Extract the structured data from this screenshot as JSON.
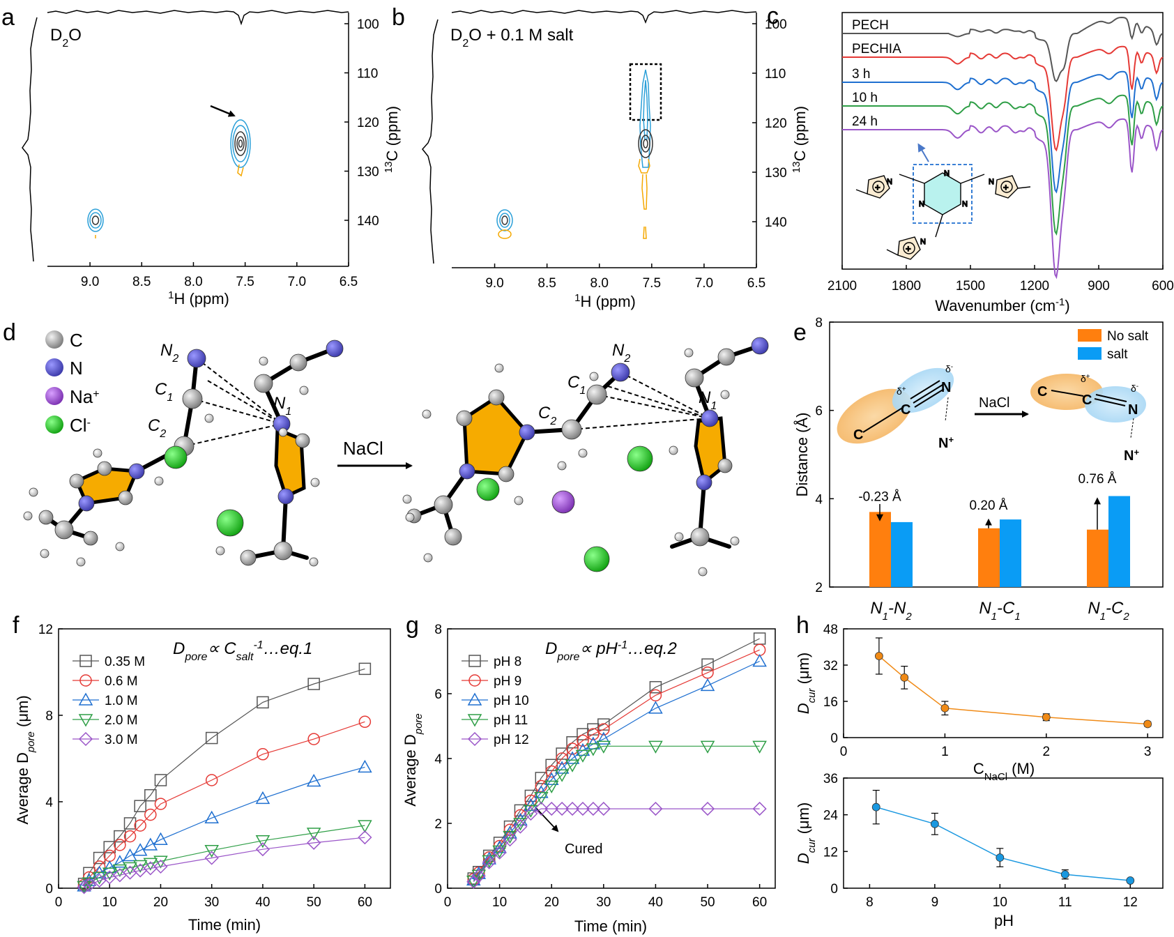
{
  "panel_letters": {
    "a": "a",
    "b": "b",
    "c": "c",
    "d": "d",
    "e": "e",
    "f": "f",
    "g": "g",
    "h": "h"
  },
  "colors": {
    "contour_blue": "#2a9fd8",
    "contour_dark": "#333333",
    "contour_orange": "#f5a800",
    "ir_pech": "#555555",
    "ir_pechia": "#e53935",
    "ir_3h": "#1e6fd0",
    "ir_10h": "#2e9e46",
    "ir_24h": "#9a55c8",
    "bar_nosalt": "#ff7f0e",
    "bar_salt": "#0a9cf5",
    "f_035": "#555555",
    "f_06": "#e53935",
    "f_10": "#1e6fd0",
    "f_20": "#2e9e46",
    "f_30": "#9a55c8",
    "h_top": "#f08a16",
    "h_bot": "#1a98e0",
    "atom_C": "#a0a0a0",
    "atom_N": "#5553c8",
    "atom_Na": "#9a4fd0",
    "atom_Cl": "#22c022",
    "ring": "#f6ab00"
  },
  "chart_data": [
    {
      "panel": "a",
      "type": "heatmap",
      "label_main": "D",
      "label_sub": "2",
      "label_rest": "O",
      "xlabel_sup": "1",
      "xlabel": "H (ppm)",
      "ylabel_sup": "13",
      "ylabel": "C (ppm)",
      "xlim": [
        9.3,
        6.5
      ],
      "ylim": [
        100,
        145
      ],
      "xticks": [
        "9.0",
        "8.5",
        "8.0",
        "7.5",
        "7.0",
        "6.5"
      ],
      "yticks": [
        "100",
        "110",
        "120",
        "130",
        "140"
      ],
      "peaks": [
        {
          "h": 7.5,
          "c": 122.5
        },
        {
          "h": 8.8,
          "c": 136.5
        }
      ]
    },
    {
      "panel": "b",
      "type": "heatmap",
      "label_main": "D",
      "label_sub": "2",
      "label_rest": "O + 0.1 M salt",
      "xlabel_sup": "1",
      "xlabel": "H (ppm)",
      "ylabel_sup": "13",
      "ylabel": "C (ppm)",
      "xlim": [
        9.3,
        6.5
      ],
      "ylim": [
        100,
        145
      ],
      "xticks": [
        "9.0",
        "8.5",
        "8.0",
        "7.5",
        "7.0",
        "6.5"
      ],
      "yticks": [
        "100",
        "110",
        "120",
        "130",
        "140"
      ],
      "peaks": [
        {
          "h": 7.5,
          "c": 122.5
        },
        {
          "h": 8.75,
          "c": 136.5
        }
      ]
    },
    {
      "panel": "c",
      "type": "line",
      "xlabel": "Wavenumber (cm",
      "xlabel_sup": "-1",
      "xlabel_end": ")",
      "xlim": [
        2100,
        600
      ],
      "xticks": [
        "2100",
        "1800",
        "1500",
        "1200",
        "900",
        "600"
      ],
      "series": [
        {
          "name": "PECH"
        },
        {
          "name": "PECHIA"
        },
        {
          "name": "3 h"
        },
        {
          "name": "10 h"
        },
        {
          "name": "24 h"
        }
      ]
    },
    {
      "panel": "d",
      "type": "other",
      "legend": [
        {
          "name": "C"
        },
        {
          "name": "N"
        },
        {
          "name": "Na",
          "sup": "+"
        },
        {
          "name": "Cl",
          "sup": "-"
        }
      ],
      "arrow_label": "NaCl"
    },
    {
      "panel": "e",
      "type": "bar",
      "ylabel": "Distance (Å)",
      "ylim": [
        2,
        8
      ],
      "yticks": [
        "2",
        "4",
        "6",
        "8"
      ],
      "categories": [
        "N1-N2",
        "N1-C1",
        "N1-C2"
      ],
      "series": [
        {
          "name": "No salt",
          "values": [
            3.7,
            3.33,
            3.3
          ]
        },
        {
          "name": "salt",
          "values": [
            3.47,
            3.53,
            4.06
          ]
        }
      ],
      "annotations": [
        "-0.23 Å",
        "0.20 Å",
        "0.76 Å"
      ],
      "scheme_label": "NaCl"
    },
    {
      "panel": "f",
      "type": "scatter",
      "eq": "D",
      "eq_sub": "pore",
      "eq_mid": "∝ C",
      "eq_sub2": "salt",
      "eq_sup": "-1",
      "eq_end": "…eq.1",
      "xlabel": "Time (min)",
      "ylabel": "Average D",
      "ylabel_sub": "pore",
      "ylabel_end": " (μm)",
      "xlim": [
        0,
        65
      ],
      "ylim": [
        0,
        12
      ],
      "xticks": [
        "0",
        "10",
        "20",
        "30",
        "40",
        "50",
        "60"
      ],
      "yticks": [
        "0",
        "4",
        "8",
        "12"
      ],
      "x": [
        5,
        6,
        8,
        10,
        12,
        14,
        16,
        18,
        20,
        30,
        40,
        50,
        60
      ],
      "series": [
        {
          "name": "0.35 M",
          "values": [
            0.2,
            0.7,
            1.4,
            1.9,
            2.4,
            3.0,
            3.8,
            4.3,
            5.0,
            6.95,
            8.6,
            9.45,
            10.15
          ]
        },
        {
          "name": "0.6 M",
          "values": [
            0.15,
            0.5,
            1.0,
            1.5,
            2.0,
            2.4,
            2.9,
            3.4,
            3.9,
            5.0,
            6.2,
            6.9,
            7.7
          ]
        },
        {
          "name": "1.0 M",
          "values": [
            0.1,
            0.35,
            0.7,
            0.95,
            1.2,
            1.5,
            1.75,
            2.0,
            2.25,
            3.25,
            4.15,
            4.95,
            5.6
          ]
        },
        {
          "name": "2.0 M",
          "values": [
            0.08,
            0.25,
            0.5,
            0.7,
            0.85,
            0.95,
            1.05,
            1.15,
            1.25,
            1.75,
            2.2,
            2.55,
            2.9
          ]
        },
        {
          "name": "3.0 M",
          "values": [
            0.05,
            0.15,
            0.35,
            0.5,
            0.6,
            0.72,
            0.82,
            0.92,
            1.0,
            1.4,
            1.8,
            2.1,
            2.35
          ]
        }
      ]
    },
    {
      "panel": "g",
      "type": "scatter",
      "eq": "D",
      "eq_sub": "pore",
      "eq_mid": "∝ pH",
      "eq_sup": "-1",
      "eq_end": "…eq.2",
      "xlabel": "Time (min)",
      "ylabel": "Average D",
      "ylabel_sub": "pore",
      "xlim": [
        0,
        63
      ],
      "ylim": [
        0,
        8
      ],
      "xticks": [
        "0",
        "10",
        "20",
        "30",
        "40",
        "50",
        "60"
      ],
      "yticks": [
        "0",
        "2",
        "4",
        "6",
        "8"
      ],
      "annotation": "Cured",
      "x": [
        5,
        6,
        8,
        10,
        12,
        14,
        16,
        18,
        20,
        22,
        24,
        26,
        28,
        30,
        40,
        50,
        60
      ],
      "series": [
        {
          "name": "pH 8",
          "values": [
            0.3,
            0.5,
            1.0,
            1.4,
            1.9,
            2.4,
            2.85,
            3.4,
            3.8,
            4.15,
            4.5,
            4.75,
            4.9,
            5.05,
            6.2,
            6.9,
            7.7
          ]
        },
        {
          "name": "pH 9",
          "values": [
            0.28,
            0.48,
            0.95,
            1.3,
            1.8,
            2.25,
            2.7,
            3.15,
            3.6,
            4.0,
            4.3,
            4.55,
            4.75,
            4.9,
            5.95,
            6.65,
            7.35
          ]
        },
        {
          "name": "pH 10",
          "values": [
            0.25,
            0.45,
            0.9,
            1.25,
            1.7,
            2.1,
            2.55,
            2.95,
            3.35,
            3.7,
            4.0,
            4.25,
            4.45,
            4.6,
            5.55,
            6.25,
            7.0
          ]
        },
        {
          "name": "pH 11",
          "values": [
            0.22,
            0.4,
            0.85,
            1.15,
            1.6,
            2.0,
            2.4,
            2.8,
            3.15,
            3.5,
            3.8,
            4.1,
            4.3,
            4.38,
            4.38,
            4.38,
            4.38
          ]
        },
        {
          "name": "pH 12",
          "values": [
            0.2,
            0.38,
            0.8,
            1.1,
            1.5,
            1.9,
            2.3,
            2.45,
            2.45,
            2.45,
            2.45,
            2.45,
            2.45,
            2.45,
            2.45,
            2.45,
            2.45
          ]
        }
      ]
    },
    {
      "panel": "h-top",
      "type": "line",
      "xlabel": "C",
      "xlabel_sub": "NaCl",
      "xlabel_end": " (M)",
      "ylabel": "D",
      "ylabel_sub": "cur",
      "ylabel_end": " (μm)",
      "xlim": [
        0,
        3.15
      ],
      "ylim": [
        0,
        48
      ],
      "xticks": [
        "0",
        "1",
        "2",
        "3"
      ],
      "yticks": [
        "0",
        "16",
        "32",
        "48"
      ],
      "x": [
        0.35,
        0.6,
        1.0,
        2.0,
        3.0
      ],
      "values": [
        36,
        26.5,
        13,
        9,
        6
      ],
      "errors": [
        8,
        5,
        3,
        1.5,
        1
      ]
    },
    {
      "panel": "h-bottom",
      "type": "line",
      "xlabel": "pH",
      "ylabel": "D",
      "ylabel_sub": "cur",
      "ylabel_end": " (μm)",
      "xlim": [
        7.6,
        12.5
      ],
      "ylim": [
        0,
        36
      ],
      "xticks": [
        "8",
        "9",
        "10",
        "11",
        "12"
      ],
      "yticks": [
        "0",
        "12",
        "24",
        "36"
      ],
      "x": [
        8.1,
        9,
        10,
        11,
        12
      ],
      "values": [
        26.5,
        21,
        10,
        4.5,
        2.5
      ],
      "errors": [
        5.5,
        3.5,
        3,
        1.5,
        0.5
      ]
    }
  ]
}
